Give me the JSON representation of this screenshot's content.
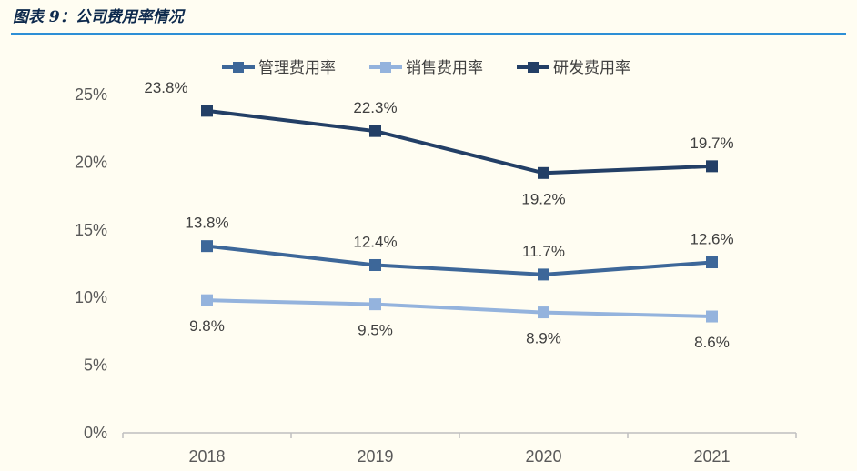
{
  "figure": {
    "title": "图表 9：公司费用率情况"
  },
  "chart_data": {
    "type": "line",
    "categories": [
      "2018",
      "2019",
      "2020",
      "2021"
    ],
    "yticks": [
      "0%",
      "5%",
      "10%",
      "15%",
      "20%",
      "25%"
    ],
    "ylim": [
      0,
      25
    ],
    "legend_position": "top",
    "grid": false,
    "series": [
      {
        "name": "管理费用率",
        "values": [
          13.8,
          12.4,
          11.7,
          12.6
        ],
        "labels": [
          "13.8%",
          "12.4%",
          "11.7%",
          "12.6%"
        ],
        "color": "#3d6799"
      },
      {
        "name": "销售费用率",
        "values": [
          9.8,
          9.5,
          8.9,
          8.6
        ],
        "labels": [
          "9.8%",
          "9.5%",
          "8.9%",
          "8.6%"
        ],
        "color": "#94b3dd"
      },
      {
        "name": "研发费用率",
        "values": [
          23.8,
          22.3,
          19.2,
          19.7
        ],
        "labels": [
          "23.8%",
          "22.3%",
          "19.2%",
          "19.7%"
        ],
        "color": "#233f66"
      }
    ]
  }
}
